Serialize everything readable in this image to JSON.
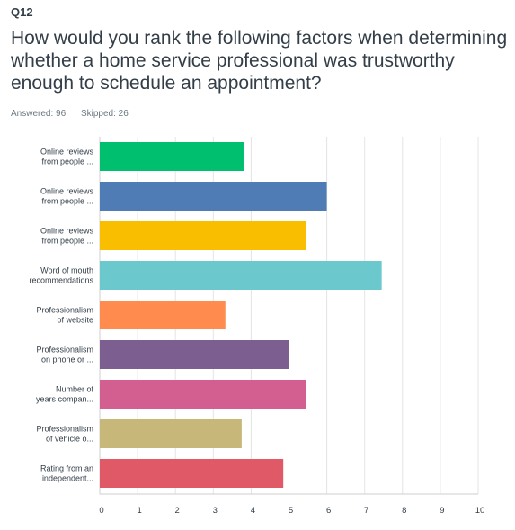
{
  "question": {
    "number": "Q12",
    "title": "How would you rank the following factors when determining whether a home service professional was trustworthy enough to schedule an appointment?",
    "answered": "Answered: 96",
    "skipped": "Skipped: 26"
  },
  "chart_data": {
    "type": "bar",
    "orientation": "horizontal",
    "categories": [
      [
        "Online reviews",
        "from people ..."
      ],
      [
        "Online reviews",
        "from people ..."
      ],
      [
        "Online reviews",
        "from people ..."
      ],
      [
        "Word of mouth",
        "recommendations"
      ],
      [
        "Professionalism",
        "of website"
      ],
      [
        "Professionalism",
        "on phone or ..."
      ],
      [
        "Number of",
        "years compan..."
      ],
      [
        "Professionalism",
        "of vehicle o..."
      ],
      [
        "Rating from an",
        "independent..."
      ]
    ],
    "values": [
      3.8,
      6.0,
      5.45,
      7.45,
      3.32,
      5.0,
      5.45,
      3.75,
      4.85
    ],
    "colors": [
      "#00bf6f",
      "#507cb6",
      "#f9be00",
      "#6bc8cd",
      "#ff8b4f",
      "#7d5e90",
      "#d25f90",
      "#c7b879",
      "#e05966"
    ],
    "xlim": [
      0,
      10
    ],
    "xticks": [
      "0",
      "1",
      "2",
      "3",
      "4",
      "5",
      "6",
      "7",
      "8",
      "9",
      "10"
    ],
    "grid": true
  }
}
